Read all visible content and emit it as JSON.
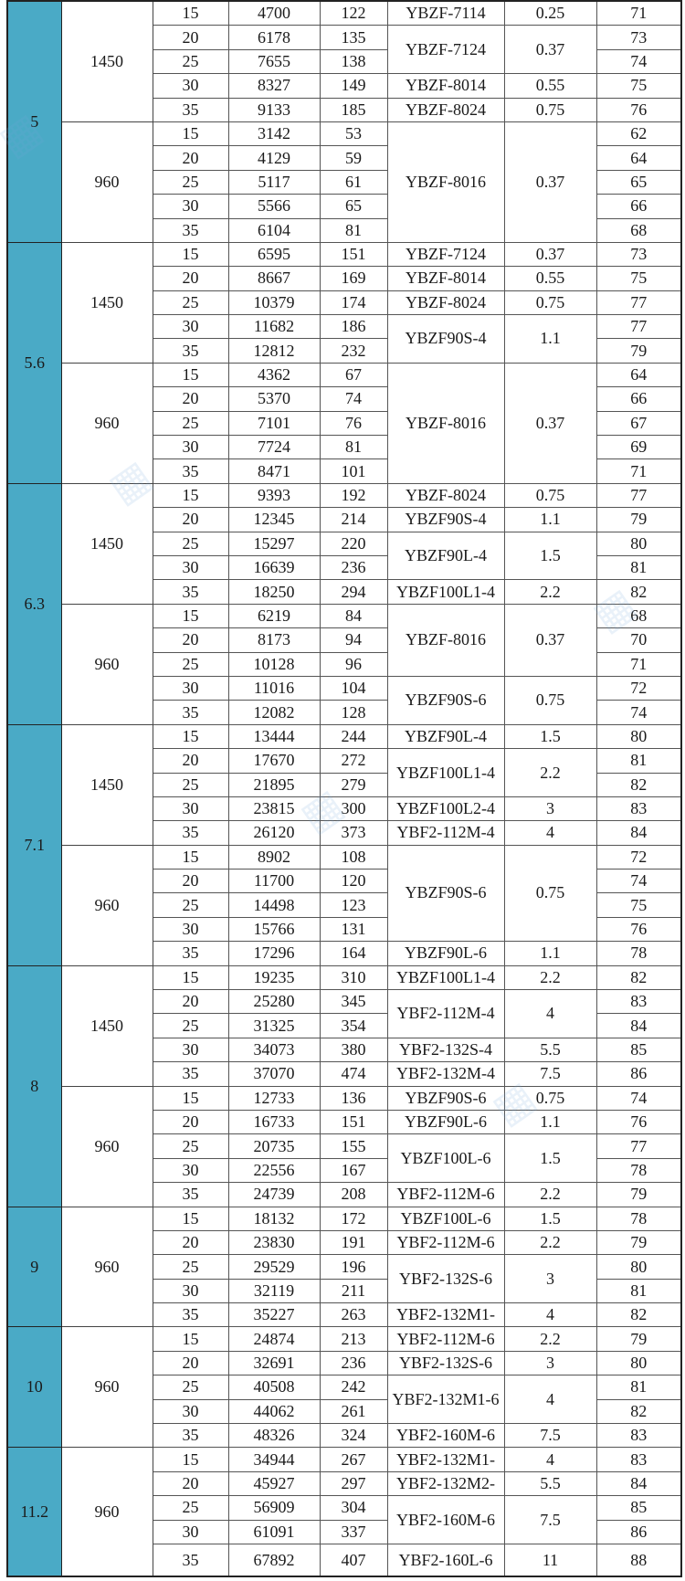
{
  "table": {
    "groups": [
      {
        "impeller": "5",
        "speeds": [
          {
            "speed": "1450",
            "rows": [
              [
                "15",
                "4700",
                "122",
                "71"
              ],
              [
                "20",
                "6178",
                "135",
                "73"
              ],
              [
                "25",
                "7655",
                "138",
                "74"
              ],
              [
                "30",
                "8327",
                "149",
                "75"
              ],
              [
                "35",
                "9133",
                "185",
                "76"
              ]
            ],
            "motors": [
              {
                "model": "YBZF-7114",
                "power": "0.25",
                "span": 1
              },
              {
                "model": "YBZF-7124",
                "power": "0.37",
                "span": 2
              },
              {
                "model": "YBZF-8014",
                "power": "0.55",
                "span": 1
              },
              {
                "model": "YBZF-8024",
                "power": "0.75",
                "span": 1
              }
            ]
          },
          {
            "speed": "960",
            "rows": [
              [
                "15",
                "3142",
                "53",
                "62"
              ],
              [
                "20",
                "4129",
                "59",
                "64"
              ],
              [
                "25",
                "5117",
                "61",
                "65"
              ],
              [
                "30",
                "5566",
                "65",
                "66"
              ],
              [
                "35",
                "6104",
                "81",
                "68"
              ]
            ],
            "motors": [
              {
                "model": "YBZF-8016",
                "power": "0.37",
                "span": 5
              }
            ]
          }
        ]
      },
      {
        "impeller": "5.6",
        "speeds": [
          {
            "speed": "1450",
            "rows": [
              [
                "15",
                "6595",
                "151",
                "73"
              ],
              [
                "20",
                "8667",
                "169",
                "75"
              ],
              [
                "25",
                "10379",
                "174",
                "77"
              ],
              [
                "30",
                "11682",
                "186",
                "77"
              ],
              [
                "35",
                "12812",
                "232",
                "79"
              ]
            ],
            "motors": [
              {
                "model": "YBZF-7124",
                "power": "0.37",
                "span": 1
              },
              {
                "model": "YBZF-8014",
                "power": "0.55",
                "span": 1
              },
              {
                "model": "YBZF-8024",
                "power": "0.75",
                "span": 1
              },
              {
                "model": "YBZF90S-4",
                "power": "1.1",
                "span": 2
              }
            ]
          },
          {
            "speed": "960",
            "rows": [
              [
                "15",
                "4362",
                "67",
                "64"
              ],
              [
                "20",
                "5370",
                "74",
                "66"
              ],
              [
                "25",
                "7101",
                "76",
                "67"
              ],
              [
                "30",
                "7724",
                "81",
                "69"
              ],
              [
                "35",
                "8471",
                "101",
                "71"
              ]
            ],
            "motors": [
              {
                "model": "YBZF-8016",
                "power": "0.37",
                "span": 5
              }
            ]
          }
        ]
      },
      {
        "impeller": "6.3",
        "speeds": [
          {
            "speed": "1450",
            "rows": [
              [
                "15",
                "9393",
                "192",
                "77"
              ],
              [
                "20",
                "12345",
                "214",
                "79"
              ],
              [
                "25",
                "15297",
                "220",
                "80"
              ],
              [
                "30",
                "16639",
                "236",
                "81"
              ],
              [
                "35",
                "18250",
                "294",
                "82"
              ]
            ],
            "motors": [
              {
                "model": "YBZF-8024",
                "power": "0.75",
                "span": 1
              },
              {
                "model": "YBZF90S-4",
                "power": "1.1",
                "span": 1
              },
              {
                "model": "YBZF90L-4",
                "power": "1.5",
                "span": 2
              },
              {
                "model": "YBZF100L1-4",
                "power": "2.2",
                "span": 1
              }
            ]
          },
          {
            "speed": "960",
            "rows": [
              [
                "15",
                "6219",
                "84",
                "68"
              ],
              [
                "20",
                "8173",
                "94",
                "70"
              ],
              [
                "25",
                "10128",
                "96",
                "71"
              ],
              [
                "30",
                "11016",
                "104",
                "72"
              ],
              [
                "35",
                "12082",
                "128",
                "74"
              ]
            ],
            "motors": [
              {
                "model": "YBZF-8016",
                "power": "0.37",
                "span": 3
              },
              {
                "model": "YBZF90S-6",
                "power": "0.75",
                "span": 2
              }
            ]
          }
        ]
      },
      {
        "impeller": "7.1",
        "speeds": [
          {
            "speed": "1450",
            "rows": [
              [
                "15",
                "13444",
                "244",
                "80"
              ],
              [
                "20",
                "17670",
                "272",
                "81"
              ],
              [
                "25",
                "21895",
                "279",
                "82"
              ],
              [
                "30",
                "23815",
                "300",
                "83"
              ],
              [
                "35",
                "26120",
                "373",
                "84"
              ]
            ],
            "motors": [
              {
                "model": "YBZF90L-4",
                "power": "1.5",
                "span": 1
              },
              {
                "model": "YBZF100L1-4",
                "power": "2.2",
                "span": 2
              },
              {
                "model": "YBZF100L2-4",
                "power": "3",
                "span": 1
              },
              {
                "model": "YBF2-112M-4",
                "power": "4",
                "span": 1
              }
            ]
          },
          {
            "speed": "960",
            "rows": [
              [
                "15",
                "8902",
                "108",
                "72"
              ],
              [
                "20",
                "11700",
                "120",
                "74"
              ],
              [
                "25",
                "14498",
                "123",
                "75"
              ],
              [
                "30",
                "15766",
                "131",
                "76"
              ],
              [
                "35",
                "17296",
                "164",
                "78"
              ]
            ],
            "motors": [
              {
                "model": "YBZF90S-6",
                "power": "0.75",
                "span": 4
              },
              {
                "model": "YBZF90L-6",
                "power": "1.1",
                "span": 1
              }
            ]
          }
        ]
      },
      {
        "impeller": "8",
        "speeds": [
          {
            "speed": "1450",
            "rows": [
              [
                "15",
                "19235",
                "310",
                "82"
              ],
              [
                "20",
                "25280",
                "345",
                "83"
              ],
              [
                "25",
                "31325",
                "354",
                "84"
              ],
              [
                "30",
                "34073",
                "380",
                "85"
              ],
              [
                "35",
                "37070",
                "474",
                "86"
              ]
            ],
            "motors": [
              {
                "model": "YBZF100L1-4",
                "power": "2.2",
                "span": 1
              },
              {
                "model": "YBF2-112M-4",
                "power": "4",
                "span": 2
              },
              {
                "model": "YBF2-132S-4",
                "power": "5.5",
                "span": 1
              },
              {
                "model": "YBF2-132M-4",
                "power": "7.5",
                "span": 1
              }
            ]
          },
          {
            "speed": "960",
            "rows": [
              [
                "15",
                "12733",
                "136",
                "74"
              ],
              [
                "20",
                "16733",
                "151",
                "76"
              ],
              [
                "25",
                "20735",
                "155",
                "77"
              ],
              [
                "30",
                "22556",
                "167",
                "78"
              ],
              [
                "35",
                "24739",
                "208",
                "79"
              ]
            ],
            "motors": [
              {
                "model": "YBZF90S-6",
                "power": "0.75",
                "span": 1
              },
              {
                "model": "YBZF90L-6",
                "power": "1.1",
                "span": 1
              },
              {
                "model": "YBZF100L-6",
                "power": "1.5",
                "span": 2
              },
              {
                "model": "YBF2-112M-6",
                "power": "2.2",
                "span": 1
              }
            ]
          }
        ]
      },
      {
        "impeller": "9",
        "speeds": [
          {
            "speed": "960",
            "rows": [
              [
                "15",
                "18132",
                "172",
                "78"
              ],
              [
                "20",
                "23830",
                "191",
                "79"
              ],
              [
                "25",
                "29529",
                "196",
                "80"
              ],
              [
                "30",
                "32119",
                "211",
                "81"
              ],
              [
                "35",
                "35227",
                "263",
                "82"
              ]
            ],
            "motors": [
              {
                "model": "YBZF100L-6",
                "power": "1.5",
                "span": 1
              },
              {
                "model": "YBF2-112M-6",
                "power": "2.2",
                "span": 1
              },
              {
                "model": "YBF2-132S-6",
                "power": "3",
                "span": 2
              },
              {
                "model": "YBF2-132M1-",
                "power": "4",
                "span": 1
              }
            ]
          }
        ]
      },
      {
        "impeller": "10",
        "speeds": [
          {
            "speed": "960",
            "rows": [
              [
                "15",
                "24874",
                "213",
                "79"
              ],
              [
                "20",
                "32691",
                "236",
                "80"
              ],
              [
                "25",
                "40508",
                "242",
                "81"
              ],
              [
                "30",
                "44062",
                "261",
                "82"
              ],
              [
                "35",
                "48326",
                "324",
                "83"
              ]
            ],
            "motors": [
              {
                "model": "YBF2-112M-6",
                "power": "2.2",
                "span": 1
              },
              {
                "model": "YBF2-132S-6",
                "power": "3",
                "span": 1
              },
              {
                "model": "YBF2-132M1-6",
                "power": "4",
                "span": 2
              },
              {
                "model": "YBF2-160M-6",
                "power": "7.5",
                "span": 1
              }
            ]
          }
        ]
      },
      {
        "impeller": "11.2",
        "speeds": [
          {
            "speed": "960",
            "rows": [
              [
                "15",
                "34944",
                "267",
                "83"
              ],
              [
                "20",
                "45927",
                "297",
                "84"
              ],
              [
                "25",
                "56909",
                "304",
                "85"
              ],
              [
                "30",
                "61091",
                "337",
                "86"
              ],
              [
                "35",
                "67892",
                "407",
                "88"
              ]
            ],
            "motors": [
              {
                "model": "YBF2-132M1-",
                "power": "4",
                "span": 1
              },
              {
                "model": "YBF2-132M2-",
                "power": "5.5",
                "span": 1
              },
              {
                "model": "YBF2-160M-6",
                "power": "7.5",
                "span": 2
              },
              {
                "model": "YBF2-160L-6",
                "power": "11",
                "span": 1
              }
            ]
          }
        ]
      }
    ]
  },
  "colors": {
    "impeller_column": "#4aaac6"
  }
}
